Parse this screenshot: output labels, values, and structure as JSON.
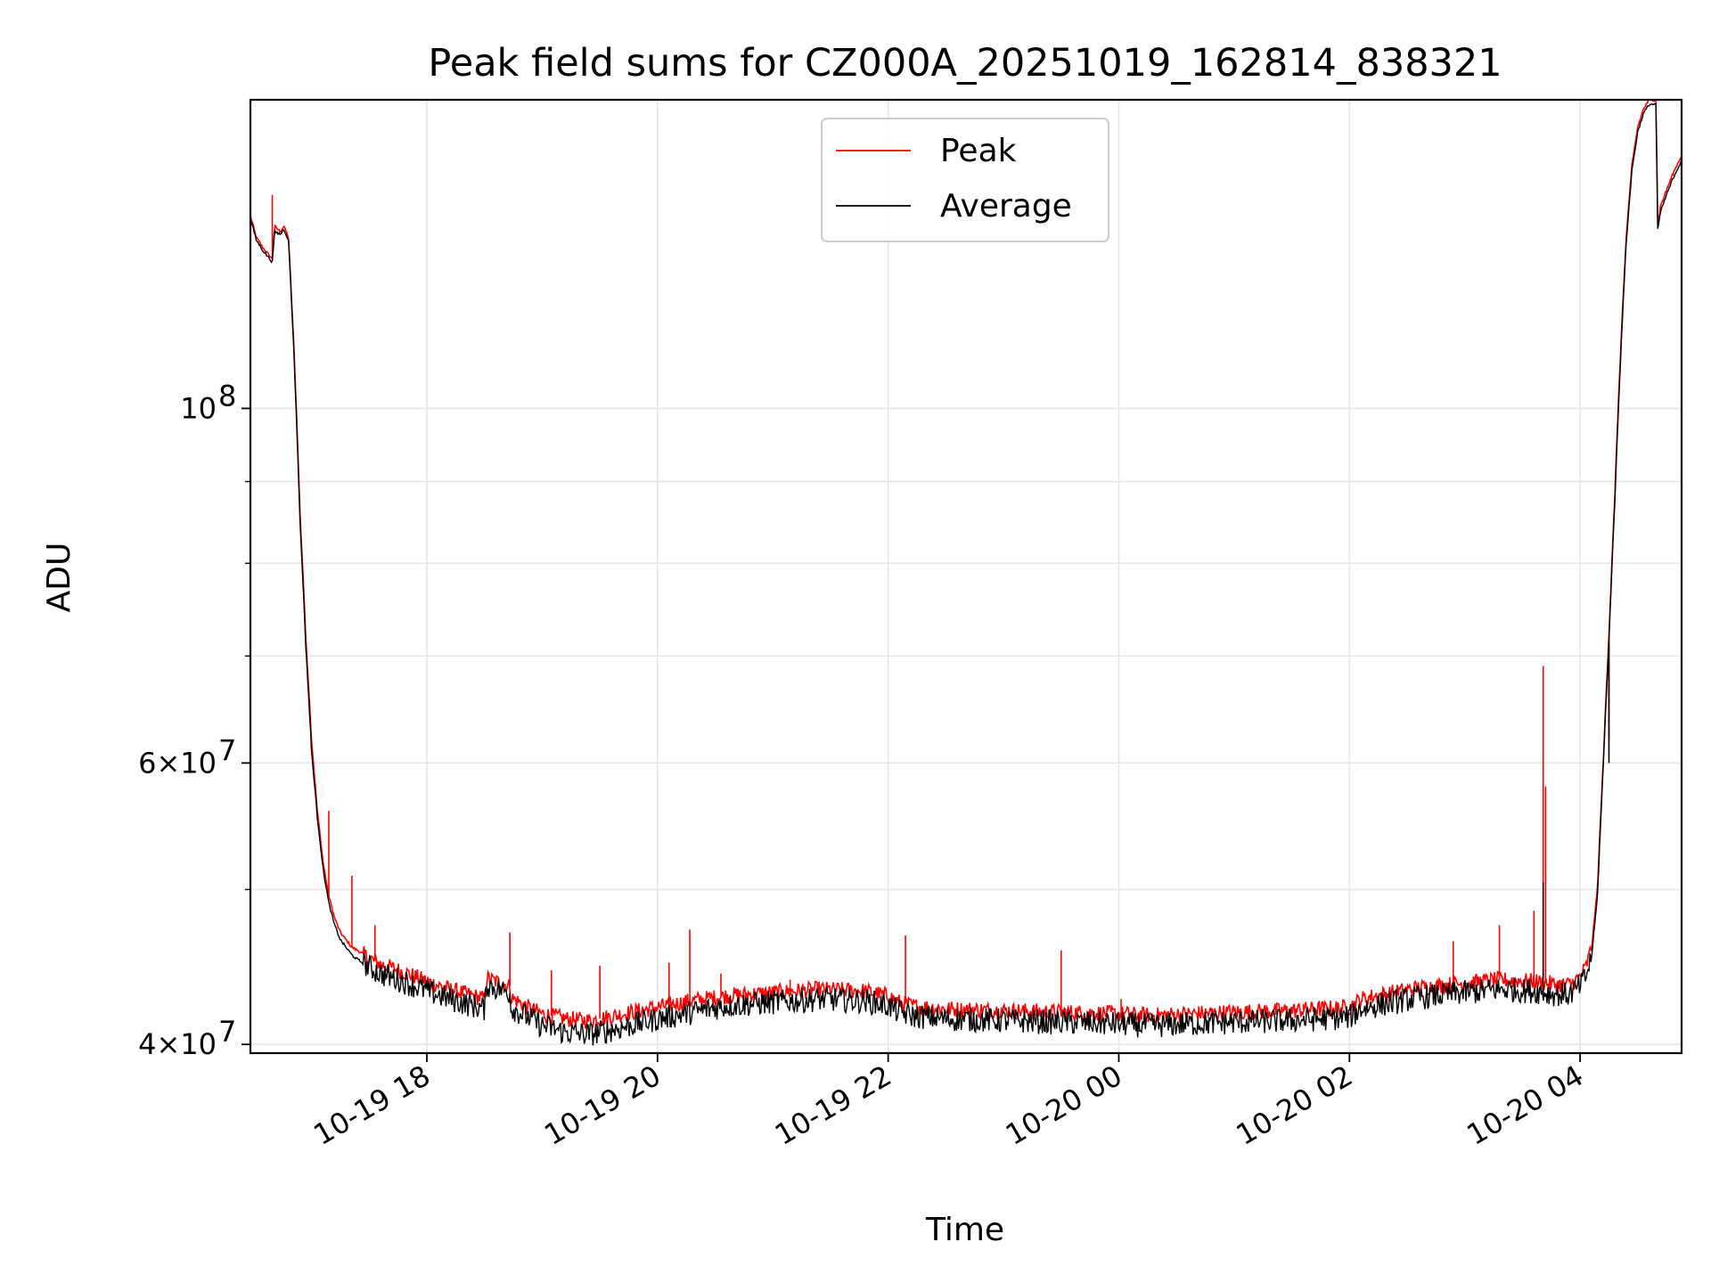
{
  "chart_data": {
    "type": "line",
    "title": "Peak field sums for CZ000A_20251019_162814_838321",
    "xlabel": "Time",
    "ylabel": "ADU",
    "yscale": "log",
    "ylim": [
      39500000,
      156000000
    ],
    "xlim_hours": [
      16.47,
      28.88
    ],
    "grid": true,
    "legend_position": "top-center",
    "x_ticks": [
      {
        "hour": 18,
        "label": "10-19 18"
      },
      {
        "hour": 20,
        "label": "10-19 20"
      },
      {
        "hour": 22,
        "label": "10-19 22"
      },
      {
        "hour": 24,
        "label": "10-20 00"
      },
      {
        "hour": 26,
        "label": "10-20 02"
      },
      {
        "hour": 28,
        "label": "10-20 04"
      }
    ],
    "y_ticks_major": [
      {
        "value": 40000000,
        "label_base": "4×10",
        "label_exp": "7"
      },
      {
        "value": 60000000,
        "label_base": "6×10",
        "label_exp": "7"
      },
      {
        "value": 100000000,
        "label_base": "10",
        "label_exp": "8"
      }
    ],
    "y_ticks_minor": [
      50000000,
      70000000,
      80000000,
      90000000
    ],
    "series": [
      {
        "name": "Peak",
        "color": "#ff0000",
        "x_hours": [
          16.47,
          16.52,
          16.58,
          16.66,
          16.68,
          16.73,
          16.76,
          16.8,
          16.85,
          16.9,
          16.95,
          17.0,
          17.05,
          17.1,
          17.15,
          17.2,
          17.25,
          17.3,
          17.35,
          17.4,
          17.5,
          17.6,
          17.8,
          18.0,
          18.2,
          18.5,
          18.52,
          18.72,
          18.73,
          18.9,
          19.0,
          19.2,
          19.4,
          19.5,
          19.7,
          20.0,
          20.3,
          20.6,
          21.0,
          21.4,
          21.8,
          22.0,
          22.1,
          22.2,
          22.5,
          23.0,
          23.5,
          24.0,
          24.3,
          24.6,
          25.0,
          25.5,
          26.0,
          26.1,
          26.3,
          26.6,
          27.0,
          27.3,
          27.6,
          27.7,
          27.8,
          27.9,
          27.95,
          28.0,
          28.05,
          28.1,
          28.15,
          28.2,
          28.25,
          28.3,
          28.35,
          28.4,
          28.45,
          28.5,
          28.55,
          28.6,
          28.66,
          28.67,
          28.7,
          28.75,
          28.8,
          28.88
        ],
        "y": [
          132000000,
          128000000,
          126000000,
          124000000,
          130000000,
          129000000,
          130000000,
          128000000,
          108000000,
          86000000,
          72000000,
          62000000,
          56000000,
          52000000,
          49500000,
          48000000,
          47000000,
          46500000,
          46000000,
          45800000,
          45300000,
          44900000,
          44400000,
          43800000,
          43300000,
          42700000,
          44000000,
          43500000,
          42800000,
          42100000,
          41800000,
          41500000,
          41400000,
          41500000,
          41800000,
          42200000,
          42600000,
          42900000,
          43100000,
          43300000,
          43200000,
          42900000,
          42500000,
          42300000,
          42100000,
          42000000,
          41900000,
          41800000,
          41700000,
          41800000,
          41900000,
          42000000,
          42200000,
          42700000,
          43000000,
          43400000,
          43700000,
          43900000,
          43800000,
          43700000,
          43600000,
          43600000,
          43800000,
          44100000,
          44700000,
          46000000,
          50000000,
          60000000,
          72000000,
          88000000,
          108000000,
          128000000,
          142000000,
          150000000,
          154000000,
          156000000,
          156000000,
          130000000,
          134000000,
          137000000,
          140000000,
          144000000
        ],
        "spikes": [
          {
            "hour": 16.66,
            "value": 136000000
          },
          {
            "hour": 17.15,
            "value": 56000000
          },
          {
            "hour": 17.35,
            "value": 51000000
          },
          {
            "hour": 17.55,
            "value": 47500000
          },
          {
            "hour": 18.72,
            "value": 47000000
          },
          {
            "hour": 19.08,
            "value": 44500000
          },
          {
            "hour": 19.5,
            "value": 44800000
          },
          {
            "hour": 20.1,
            "value": 45000000
          },
          {
            "hour": 20.28,
            "value": 47200000
          },
          {
            "hour": 20.55,
            "value": 44300000
          },
          {
            "hour": 21.15,
            "value": 43900000
          },
          {
            "hour": 22.15,
            "value": 46800000
          },
          {
            "hour": 23.5,
            "value": 45800000
          },
          {
            "hour": 24.02,
            "value": 42700000
          },
          {
            "hour": 25.6,
            "value": 42400000
          },
          {
            "hour": 26.9,
            "value": 46400000
          },
          {
            "hour": 27.3,
            "value": 47500000
          },
          {
            "hour": 27.6,
            "value": 48500000
          },
          {
            "hour": 27.68,
            "value": 69000000
          },
          {
            "hour": 27.7,
            "value": 58000000
          },
          {
            "hour": 28.25,
            "value": 62000000
          }
        ]
      },
      {
        "name": "Average",
        "color": "#000000",
        "x_hours": [
          16.47,
          16.52,
          16.58,
          16.66,
          16.68,
          16.73,
          16.76,
          16.8,
          16.85,
          16.9,
          16.95,
          17.0,
          17.05,
          17.1,
          17.15,
          17.2,
          17.25,
          17.3,
          17.35,
          17.4,
          17.5,
          17.6,
          17.8,
          18.0,
          18.2,
          18.5,
          18.52,
          18.72,
          18.73,
          18.9,
          19.0,
          19.2,
          19.4,
          19.5,
          19.7,
          20.0,
          20.3,
          20.6,
          21.0,
          21.4,
          21.8,
          22.0,
          22.1,
          22.2,
          22.5,
          23.0,
          23.5,
          24.0,
          24.3,
          24.6,
          25.0,
          25.5,
          26.0,
          26.1,
          26.3,
          26.6,
          27.0,
          27.3,
          27.6,
          27.7,
          27.8,
          27.9,
          27.95,
          28.0,
          28.05,
          28.1,
          28.15,
          28.2,
          28.25,
          28.3,
          28.35,
          28.4,
          28.45,
          28.5,
          28.55,
          28.6,
          28.66,
          28.67,
          28.7,
          28.75,
          28.8,
          28.88
        ],
        "y": [
          131500000,
          127500000,
          125500000,
          123500000,
          129000000,
          128500000,
          129500000,
          127500000,
          107000000,
          85000000,
          71000000,
          61000000,
          55500000,
          51500000,
          49000000,
          47500000,
          46500000,
          46000000,
          45500000,
          45200000,
          44700000,
          44300000,
          43800000,
          43200000,
          42700000,
          42100000,
          43600000,
          43100000,
          42200000,
          41500000,
          41100000,
          40700000,
          40600000,
          40700000,
          41000000,
          41500000,
          41900000,
          42300000,
          42500000,
          42700000,
          42600000,
          42300000,
          41900000,
          41700000,
          41500000,
          41400000,
          41300000,
          41200000,
          41100000,
          41200000,
          41300000,
          41400000,
          41600000,
          42100000,
          42400000,
          42800000,
          43100000,
          43300000,
          43200000,
          43100000,
          43000000,
          43000000,
          43200000,
          43500000,
          44100000,
          45400000,
          49400000,
          59500000,
          71500000,
          87000000,
          107000000,
          127000000,
          141000000,
          149000000,
          153000000,
          155000000,
          155000000,
          129000000,
          133000000,
          136000000,
          139000000,
          143000000
        ],
        "spikes": [
          {
            "hour": 27.68,
            "value": 50500000
          },
          {
            "hour": 28.25,
            "value": 60000000
          }
        ]
      }
    ]
  }
}
